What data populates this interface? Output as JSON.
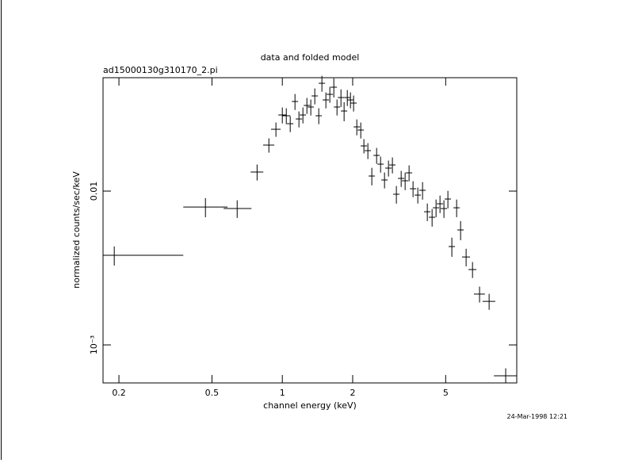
{
  "chart_data": {
    "type": "scatter",
    "title": "data and folded model",
    "subtitle": "ad15000130g310170_2.pi",
    "xlabel": "channel energy (keV)",
    "ylabel": "normalized counts/sec/keV",
    "annotation": "24-Mar-1998 12:21",
    "xlog": true,
    "ylog": true,
    "color": "#000000",
    "xlim": [
      0.171,
      10.07
    ],
    "ylim": [
      0.000566,
      0.0546
    ],
    "xticks": [
      0.2,
      0.5,
      1,
      2,
      5
    ],
    "yticks": [
      0.01,
      {
        "value": 0.001,
        "label": "10⁻³"
      }
    ],
    "x": [
      0.191,
      0.469,
      0.641,
      0.78,
      0.876,
      0.939,
      1.0,
      1.04,
      1.081,
      1.133,
      1.178,
      1.225,
      1.274,
      1.324,
      1.377,
      1.432,
      1.477,
      1.536,
      1.597,
      1.661,
      1.714,
      1.782,
      1.838,
      1.897,
      1.957,
      2.018,
      2.083,
      2.166,
      2.234,
      2.323,
      2.415,
      2.532,
      2.633,
      2.737,
      2.846,
      2.958,
      3.076,
      3.225,
      3.353,
      3.486,
      3.625,
      3.799,
      3.981,
      4.172,
      4.373,
      4.547,
      4.727,
      4.914,
      5.11,
      5.313,
      5.569,
      5.791,
      6.115,
      6.512,
      6.98,
      7.67,
      9.03
    ],
    "x_low": [
      0.171,
      0.377,
      0.561,
      0.732,
      0.828,
      0.895,
      0.961,
      1.0,
      1.047,
      1.098,
      1.141,
      1.187,
      1.235,
      1.283,
      1.334,
      1.388,
      1.431,
      1.488,
      1.547,
      1.609,
      1.661,
      1.727,
      1.781,
      1.838,
      1.896,
      1.955,
      2.018,
      2.099,
      2.164,
      2.251,
      2.34,
      2.453,
      2.551,
      2.652,
      2.757,
      2.866,
      2.98,
      3.124,
      3.248,
      3.377,
      3.512,
      3.681,
      3.857,
      4.042,
      4.237,
      4.405,
      4.58,
      4.761,
      4.951,
      5.147,
      5.395,
      5.61,
      5.876,
      6.258,
      6.6,
      7.19,
      8.04
    ],
    "x_high": [
      0.377,
      0.583,
      0.738,
      0.829,
      0.924,
      0.983,
      1.039,
      1.081,
      1.115,
      1.169,
      1.215,
      1.263,
      1.314,
      1.365,
      1.42,
      1.476,
      1.523,
      1.584,
      1.647,
      1.713,
      1.767,
      1.837,
      1.895,
      1.956,
      2.018,
      2.081,
      2.148,
      2.233,
      2.304,
      2.395,
      2.49,
      2.611,
      2.715,
      2.822,
      2.935,
      3.05,
      3.172,
      3.326,
      3.458,
      3.595,
      3.738,
      3.917,
      4.105,
      4.302,
      4.509,
      4.689,
      4.874,
      5.067,
      5.269,
      5.479,
      5.743,
      5.972,
      6.354,
      6.766,
      7.36,
      8.15,
      10.07
    ],
    "y": [
      0.003824,
      0.00788,
      0.0077,
      0.0133,
      0.01991,
      0.02523,
      0.03125,
      0.03089,
      0.02742,
      0.03824,
      0.02944,
      0.03125,
      0.03604,
      0.03519,
      0.04156,
      0.03089,
      0.05023,
      0.03915,
      0.04256,
      0.04736,
      0.03519,
      0.04057,
      0.03316,
      0.04057,
      0.03915,
      0.03734,
      0.02615,
      0.02494,
      0.01967,
      0.01832,
      0.01253,
      0.01706,
      0.01497,
      0.01181,
      0.01411,
      0.01479,
      0.00954,
      0.01209,
      0.01167,
      0.01314,
      0.01036,
      0.00942,
      0.01012,
      0.00734,
      0.00676,
      0.00779,
      0.00827,
      0.0077,
      0.00888,
      0.00436,
      0.00779,
      0.00559,
      0.00373,
      0.00309,
      0.00214,
      0.00192,
      0.00063
    ],
    "yerr": [
      0.000545,
      0.00112,
      0.00101,
      0.00158,
      0.00213,
      0.0027,
      0.00371,
      0.00367,
      0.00325,
      0.00454,
      0.00349,
      0.00371,
      0.00428,
      0.00418,
      0.00493,
      0.00367,
      0.00596,
      0.00465,
      0.00505,
      0.00675,
      0.00418,
      0.0053,
      0.00472,
      0.00482,
      0.00465,
      0.00443,
      0.0031,
      0.00296,
      0.0021,
      0.00217,
      0.00164,
      0.00203,
      0.00178,
      0.0014,
      0.00167,
      0.00176,
      0.00125,
      0.00144,
      0.00152,
      0.00156,
      0.00123,
      0.00112,
      0.00132,
      0.000958,
      0.000883,
      0.00102,
      0.00108,
      0.00101,
      0.00116,
      0.000621,
      0.00102,
      0.000796,
      0.000487,
      0.000367,
      0.000254,
      0.000228,
      7.48e-05
    ]
  }
}
